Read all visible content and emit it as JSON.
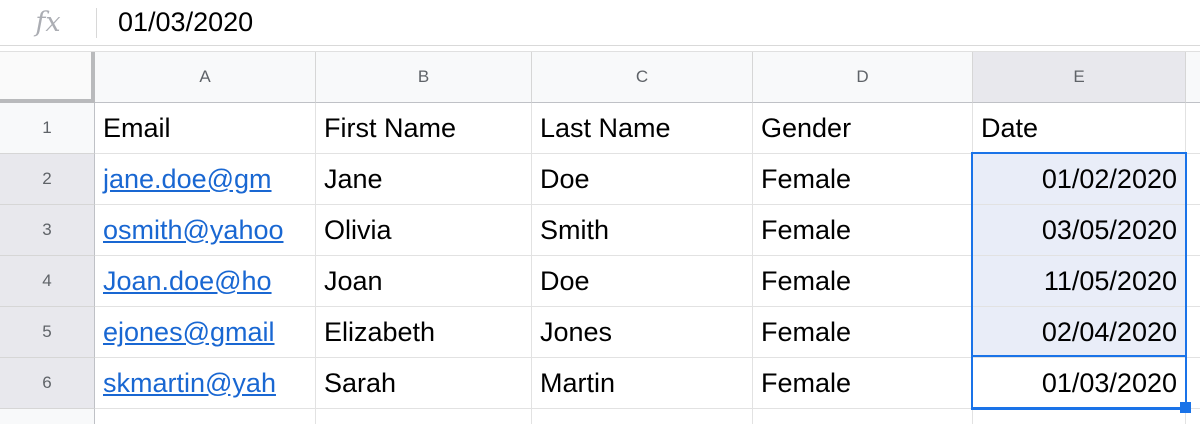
{
  "formula_bar": {
    "fx_label": "fx",
    "value": "01/03/2020"
  },
  "column_headers": [
    "A",
    "B",
    "C",
    "D",
    "E"
  ],
  "header_row": {
    "number": "1",
    "cells": [
      "Email",
      "First Name",
      "Last Name",
      "Gender",
      "Date"
    ]
  },
  "data_rows": [
    {
      "number": "2",
      "email": "jane.doe@gm",
      "first_name": "Jane",
      "last_name": "Doe",
      "gender": "Female",
      "date": "01/02/2020"
    },
    {
      "number": "3",
      "email": "osmith@yahoo",
      "first_name": "Olivia",
      "last_name": "Smith",
      "gender": "Female",
      "date": "03/05/2020"
    },
    {
      "number": "4",
      "email": "Joan.doe@ho",
      "first_name": "Joan",
      "last_name": "Doe",
      "gender": "Female",
      "date": "11/05/2020"
    },
    {
      "number": "5",
      "email": "ejones@gmail",
      "first_name": "Elizabeth",
      "last_name": "Jones",
      "gender": "Female",
      "date": "02/04/2020"
    },
    {
      "number": "6",
      "email": "skmartin@yah",
      "first_name": "Sarah",
      "last_name": "Martin",
      "gender": "Female",
      "date": "01/03/2020"
    }
  ],
  "selection": {
    "selected_range": "E2:E6",
    "active_cell": "E6"
  },
  "colors": {
    "accent": "#1a73e8",
    "selection_fill": "#e9edf8",
    "header_bg": "#f8f9fa",
    "header_highlight": "#e8e8ed",
    "link": "#1967d2",
    "gridline": "#e2e2e2"
  }
}
